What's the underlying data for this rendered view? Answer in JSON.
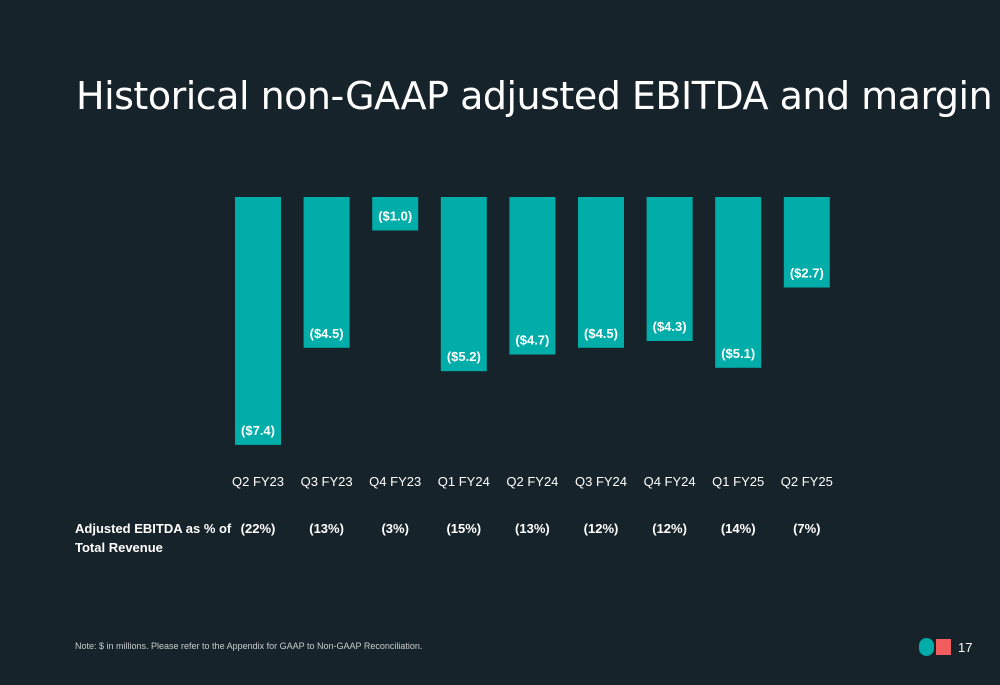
{
  "title": "Historical non-GAAP adjusted EBITDA and margin",
  "colors": {
    "background": "#17232a",
    "bar": "#00ada8",
    "logo_circle": "#00ada8",
    "logo_square": "#f25c5c"
  },
  "chart_data": {
    "type": "bar",
    "title": "",
    "xlabel": "",
    "ylabel": "",
    "categories": [
      "Q2 FY23",
      "Q3 FY23",
      "Q4 FY23",
      "Q1 FY24",
      "Q2 FY24",
      "Q3 FY24",
      "Q4 FY24",
      "Q1 FY25",
      "Q2 FY25"
    ],
    "values": [
      -7.4,
      -4.5,
      -1.0,
      -5.2,
      -4.7,
      -4.5,
      -4.3,
      -5.1,
      -2.7
    ],
    "data_labels": [
      "($7.4)",
      "($4.5)",
      "($1.0)",
      "($5.2)",
      "($4.7)",
      "($4.5)",
      "($4.3)",
      "($5.1)",
      "($2.7)"
    ],
    "ylim": [
      -7.4,
      0
    ],
    "grid": false,
    "legend": "none"
  },
  "margin_row": {
    "label": "Adjusted EBITDA as % of Total Revenue",
    "values": [
      "(22%)",
      "(13%)",
      "(3%)",
      "(15%)",
      "(13%)",
      "(12%)",
      "(12%)",
      "(14%)",
      "(7%)"
    ]
  },
  "footnote": "Note: $ in millions. Please refer to the Appendix for GAAP to Non-GAAP Reconciliation.",
  "page_number": "17"
}
